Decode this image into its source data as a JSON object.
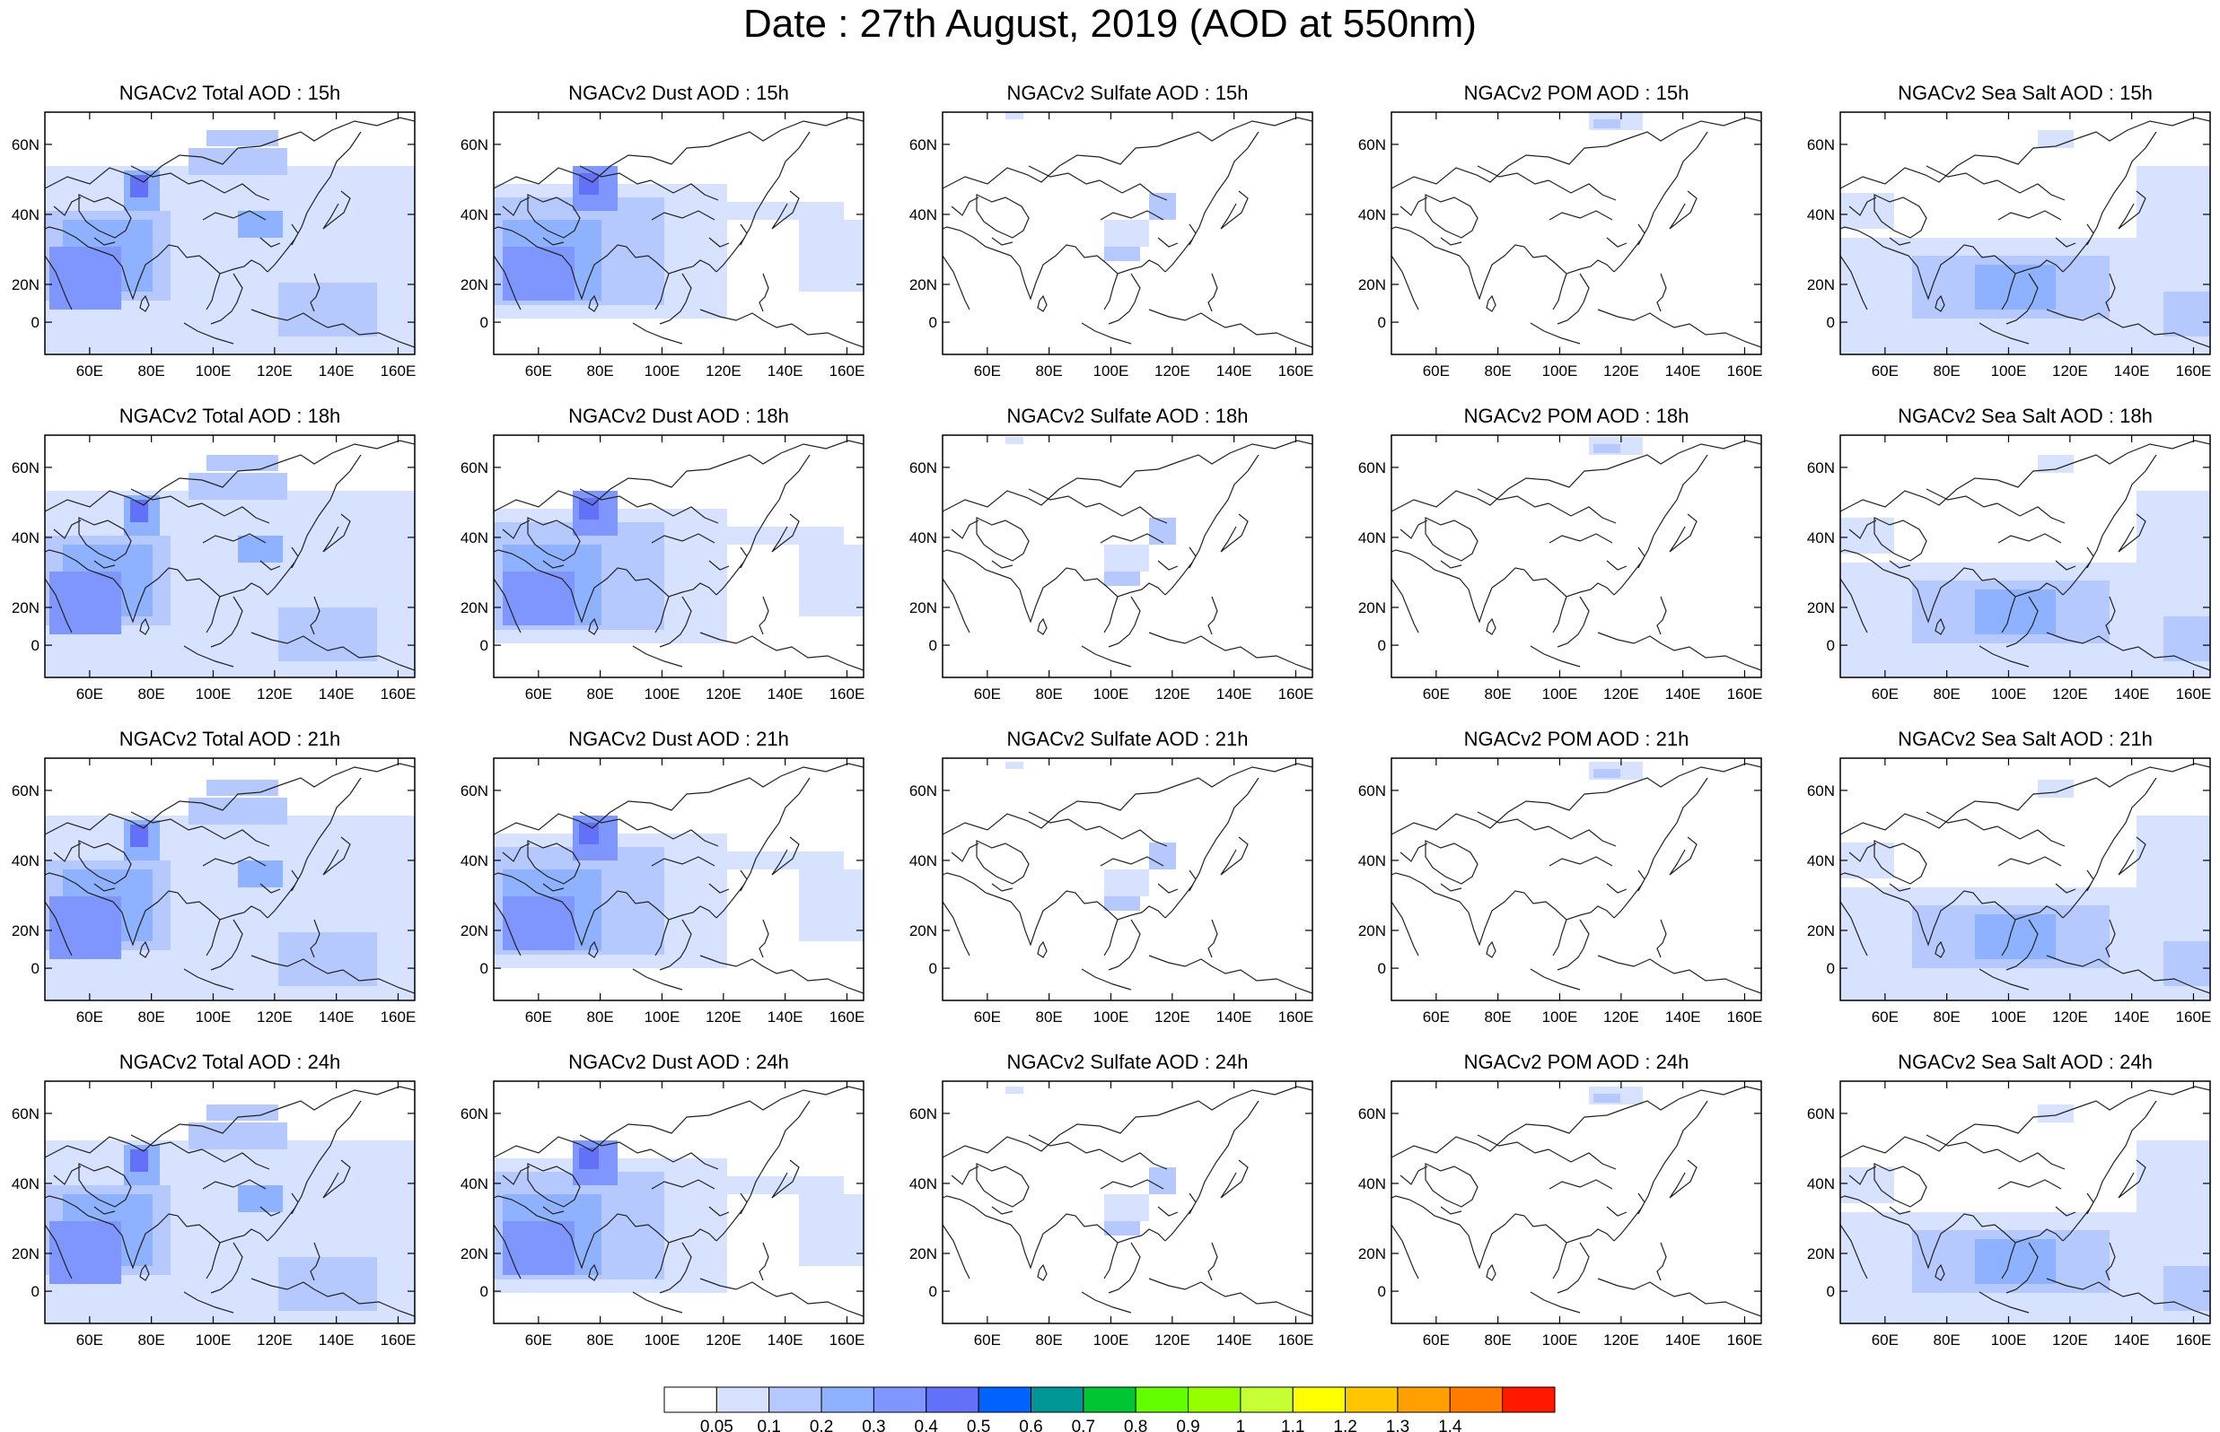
{
  "title": "Date : 27th August, 2019 (AOD at 550nm)",
  "x_ticks": [
    "60E",
    "80E",
    "100E",
    "120E",
    "140E",
    "160E"
  ],
  "y_ticks": [
    "60N",
    "40N",
    "20N",
    "0"
  ],
  "panels": [
    [
      "NGACv2 Total AOD : 15h",
      "NGACv2 Dust AOD : 15h",
      "NGACv2 Sulfate AOD : 15h",
      "NGACv2 POM AOD : 15h",
      "NGACv2 Sea Salt AOD : 15h"
    ],
    [
      "NGACv2 Total AOD : 18h",
      "NGACv2 Dust AOD : 18h",
      "NGACv2 Sulfate AOD : 18h",
      "NGACv2 POM AOD : 18h",
      "NGACv2 Sea Salt AOD : 18h"
    ],
    [
      "NGACv2 Total AOD : 21h",
      "NGACv2 Dust AOD : 21h",
      "NGACv2 Sulfate AOD : 21h",
      "NGACv2 POM AOD : 21h",
      "NGACv2 Sea Salt AOD : 21h"
    ],
    [
      "NGACv2 Total AOD : 24h",
      "NGACv2 Dust AOD : 24h",
      "NGACv2 Sulfate AOD : 24h",
      "NGACv2 POM AOD : 24h",
      "NGACv2 Sea Salt  AOD : 24h"
    ]
  ],
  "colorbar": {
    "labels": [
      "0.05",
      "0.1",
      "0.2",
      "0.3",
      "0.4",
      "0.5",
      "0.6",
      "0.7",
      "0.8",
      "0.9",
      "1",
      "1.1",
      "1.2",
      "1.3",
      "1.4"
    ],
    "colors": [
      "#ffffff",
      "#d6e2ff",
      "#b5c9ff",
      "#8eb2ff",
      "#7f96ff",
      "#6370f8",
      "#0063ff",
      "#009696",
      "#00c633",
      "#63ff00",
      "#96ff00",
      "#c6ff33",
      "#ffff00",
      "#ffc600",
      "#ffa000",
      "#ff7c00",
      "#ff1900"
    ]
  }
}
